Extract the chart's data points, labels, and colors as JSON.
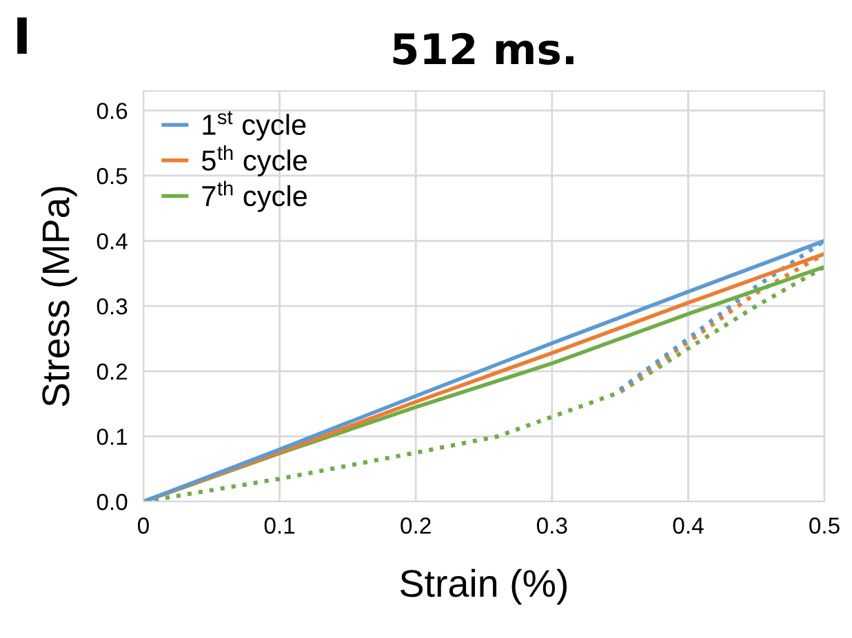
{
  "chart_data": {
    "type": "line",
    "title": "512 ms.",
    "xlabel": "Strain (%)",
    "ylabel": "Stress (MPa)",
    "annotations": [
      "I"
    ],
    "xlim": [
      0,
      0.5
    ],
    "ylim": [
      0,
      0.63
    ],
    "xticks": [
      {
        "value": 0,
        "label": "0"
      },
      0.1,
      0.2,
      0.3,
      0.4,
      0.5
    ],
    "yticks": [
      {
        "value": 0,
        "label": "0.0"
      },
      0.1,
      0.2,
      0.3,
      0.4,
      0.5,
      0.6
    ],
    "grid": true,
    "legend": "top left",
    "marker": "none",
    "series": [
      {
        "name": "1$^{st}$ cycle",
        "color": "#5b9bd5",
        "line_style": "solid",
        "x": [
          0,
          0.1,
          0.2,
          0.3,
          0.4,
          0.5
        ],
        "values": [
          0,
          0.08,
          0.162,
          0.243,
          0.322,
          0.4
        ]
      },
      {
        "name": "5$^{th}$ cycle",
        "color": "#ed7d31",
        "line_style": "solid",
        "x": [
          0,
          0.1,
          0.2,
          0.3,
          0.4,
          0.5
        ],
        "values": [
          0,
          0.076,
          0.153,
          0.228,
          0.305,
          0.38
        ]
      },
      {
        "name": "7$^{th}$ cycle",
        "color": "#70ad47",
        "line_style": "solid",
        "x": [
          0,
          0.1,
          0.2,
          0.3,
          0.4,
          0.5
        ],
        "values": [
          0,
          0.074,
          0.145,
          0.212,
          0.288,
          0.36
        ]
      },
      {
        "color": "#5b9bd5",
        "line_style": "dotted",
        "x": [
          0.35,
          0.4,
          0.45,
          0.5
        ],
        "values": [
          0.172,
          0.25,
          0.33,
          0.4
        ]
      },
      {
        "color": "#ed7d31",
        "line_style": "dotted",
        "x": [
          0.35,
          0.4,
          0.45,
          0.5
        ],
        "values": [
          0.17,
          0.245,
          0.32,
          0.38
        ]
      },
      {
        "color": "#70ad47",
        "line_style": "dotted",
        "x": [
          0,
          0.1,
          0.2,
          0.26,
          0.3,
          0.35,
          0.4,
          0.45,
          0.5
        ],
        "values": [
          0,
          0.035,
          0.075,
          0.1,
          0.13,
          0.168,
          0.235,
          0.3,
          0.36
        ]
      }
    ]
  }
}
